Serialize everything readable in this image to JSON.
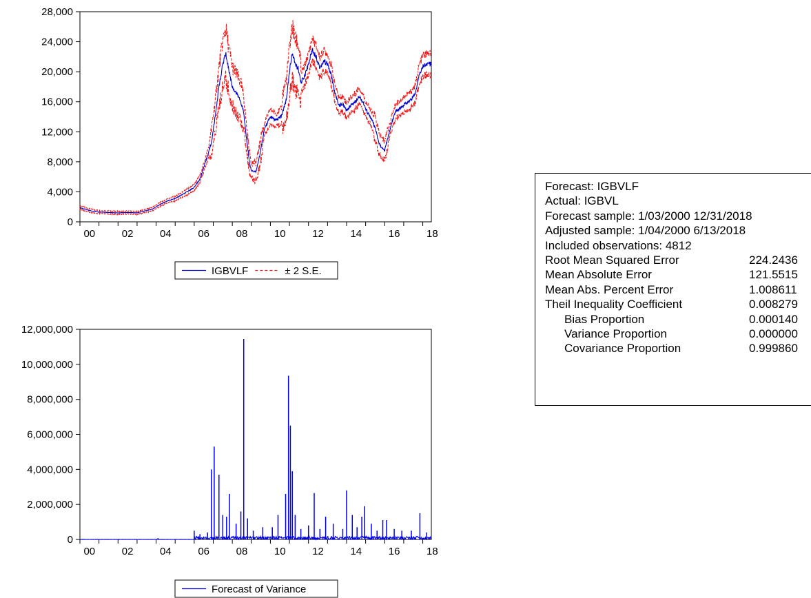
{
  "chart_data": [
    {
      "type": "line",
      "x_tick_labels": [
        "00",
        "02",
        "04",
        "06",
        "08",
        "10",
        "12",
        "14",
        "16",
        "18"
      ],
      "xlim": [
        2000.0,
        2018.45
      ],
      "y_tick_labels": [
        "0",
        "4,000",
        "8,000",
        "12,000",
        "16,000",
        "20,000",
        "24,000",
        "28,000"
      ],
      "ylim": [
        0,
        28000
      ],
      "legend_position": "bottom-center",
      "series": [
        {
          "name": "IGBVLF",
          "style": "solid",
          "color": "#0000cc",
          "points": [
            [
              2000.0,
              1900
            ],
            [
              2000.3,
              1650
            ],
            [
              2000.7,
              1400
            ],
            [
              2001.0,
              1300
            ],
            [
              2001.5,
              1250
            ],
            [
              2002.0,
              1200
            ],
            [
              2002.5,
              1250
            ],
            [
              2003.0,
              1200
            ],
            [
              2003.4,
              1450
            ],
            [
              2003.8,
              1700
            ],
            [
              2004.2,
              2300
            ],
            [
              2004.6,
              2800
            ],
            [
              2005.0,
              3100
            ],
            [
              2005.5,
              3800
            ],
            [
              2006.0,
              4600
            ],
            [
              2006.3,
              5700
            ],
            [
              2006.6,
              8000
            ],
            [
              2006.9,
              10500
            ],
            [
              2007.1,
              14000
            ],
            [
              2007.3,
              18000
            ],
            [
              2007.5,
              21000
            ],
            [
              2007.65,
              22500
            ],
            [
              2007.8,
              20500
            ],
            [
              2008.0,
              18000
            ],
            [
              2008.25,
              17000
            ],
            [
              2008.45,
              16000
            ],
            [
              2008.6,
              14500
            ],
            [
              2008.75,
              11000
            ],
            [
              2008.9,
              8000
            ],
            [
              2009.0,
              6800
            ],
            [
              2009.25,
              6700
            ],
            [
              2009.45,
              9000
            ],
            [
              2009.7,
              12500
            ],
            [
              2010.0,
              14000
            ],
            [
              2010.3,
              13500
            ],
            [
              2010.6,
              14200
            ],
            [
              2010.85,
              16500
            ],
            [
              2011.0,
              20000
            ],
            [
              2011.15,
              22500
            ],
            [
              2011.3,
              21000
            ],
            [
              2011.45,
              20500
            ],
            [
              2011.6,
              18500
            ],
            [
              2011.8,
              19500
            ],
            [
              2012.0,
              21000
            ],
            [
              2012.2,
              23000
            ],
            [
              2012.4,
              22000
            ],
            [
              2012.6,
              20500
            ],
            [
              2012.8,
              21500
            ],
            [
              2013.0,
              21000
            ],
            [
              2013.2,
              19500
            ],
            [
              2013.4,
              17000
            ],
            [
              2013.6,
              15500
            ],
            [
              2013.8,
              15700
            ],
            [
              2014.0,
              14800
            ],
            [
              2014.2,
              15500
            ],
            [
              2014.45,
              16000
            ],
            [
              2014.65,
              16800
            ],
            [
              2014.85,
              16000
            ],
            [
              2015.0,
              15000
            ],
            [
              2015.25,
              14000
            ],
            [
              2015.5,
              12500
            ],
            [
              2015.7,
              10500
            ],
            [
              2015.85,
              9800
            ],
            [
              2016.0,
              9500
            ],
            [
              2016.2,
              11500
            ],
            [
              2016.4,
              13500
            ],
            [
              2016.6,
              14800
            ],
            [
              2016.85,
              15200
            ],
            [
              2017.1,
              15800
            ],
            [
              2017.35,
              16200
            ],
            [
              2017.6,
              17000
            ],
            [
              2017.8,
              19500
            ],
            [
              2018.0,
              20800
            ],
            [
              2018.2,
              21000
            ],
            [
              2018.45,
              21000
            ]
          ]
        },
        {
          "name": "± 2 S.E.",
          "style": "dashed",
          "color": "#ee1111",
          "points": []
        }
      ]
    },
    {
      "type": "bar",
      "x_tick_labels": [
        "00",
        "02",
        "04",
        "06",
        "08",
        "10",
        "12",
        "14",
        "16",
        "18"
      ],
      "xlim": [
        2000.0,
        2018.45
      ],
      "y_tick_labels": [
        "0",
        "2,000,000",
        "4,000,000",
        "6,000,000",
        "8,000,000",
        "10,000,000",
        "12,000,000"
      ],
      "ylim": [
        0,
        12000000
      ],
      "legend_position": "bottom-center",
      "series": [
        {
          "name": "Forecast of Variance",
          "color": "#0000ee",
          "spikes": [
            [
              2004.1,
              80000
            ],
            [
              2006.0,
              500000
            ],
            [
              2006.3,
              300000
            ],
            [
              2006.7,
              400000
            ],
            [
              2006.9,
              4000000
            ],
            [
              2007.05,
              5300000
            ],
            [
              2007.3,
              3700000
            ],
            [
              2007.5,
              1400000
            ],
            [
              2007.7,
              1300000
            ],
            [
              2007.85,
              2600000
            ],
            [
              2008.2,
              900000
            ],
            [
              2008.45,
              1600000
            ],
            [
              2008.6,
              11450000
            ],
            [
              2008.8,
              1200000
            ],
            [
              2009.1,
              500000
            ],
            [
              2009.6,
              700000
            ],
            [
              2010.1,
              700000
            ],
            [
              2010.4,
              1400000
            ],
            [
              2010.8,
              2600000
            ],
            [
              2010.95,
              9350000
            ],
            [
              2011.05,
              6500000
            ],
            [
              2011.15,
              3900000
            ],
            [
              2011.3,
              1400000
            ],
            [
              2011.6,
              600000
            ],
            [
              2012.0,
              800000
            ],
            [
              2012.3,
              2650000
            ],
            [
              2012.6,
              600000
            ],
            [
              2012.9,
              1300000
            ],
            [
              2013.3,
              900000
            ],
            [
              2013.8,
              600000
            ],
            [
              2014.0,
              2800000
            ],
            [
              2014.3,
              1400000
            ],
            [
              2014.55,
              700000
            ],
            [
              2014.8,
              1300000
            ],
            [
              2014.95,
              1900000
            ],
            [
              2015.3,
              900000
            ],
            [
              2015.6,
              500000
            ],
            [
              2015.9,
              1100000
            ],
            [
              2016.1,
              1100000
            ],
            [
              2016.5,
              600000
            ],
            [
              2016.9,
              500000
            ],
            [
              2017.4,
              500000
            ],
            [
              2017.85,
              1500000
            ],
            [
              2018.2,
              400000
            ]
          ]
        }
      ]
    }
  ],
  "forecast_stats": {
    "lines": [
      "Forecast: IGBVLF",
      "Actual: IGBVL",
      "Forecast sample: 1/03/2000 12/31/2018",
      "Adjusted sample: 1/04/2000 6/13/2018",
      "Included observations: 4812"
    ],
    "metrics": [
      {
        "label": "Root Mean Squared Error",
        "value": "224.2436",
        "indent": false
      },
      {
        "label": "Mean Absolute Error",
        "value": "121.5515",
        "indent": false
      },
      {
        "label": "Mean Abs. Percent Error",
        "value": "1.008611",
        "indent": false
      },
      {
        "label": "Theil Inequality Coefficient",
        "value": "0.008279",
        "indent": false
      },
      {
        "label": "Bias Proportion",
        "value": "0.000140",
        "indent": true
      },
      {
        "label": "Variance Proportion",
        "value": "0.000000",
        "indent": true
      },
      {
        "label": "Covariance Proportion",
        "value": "0.999860",
        "indent": true
      }
    ]
  }
}
